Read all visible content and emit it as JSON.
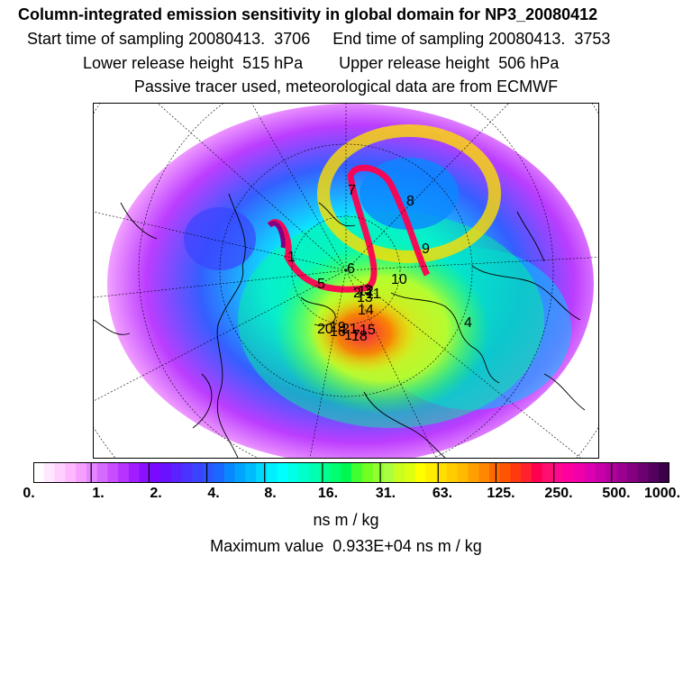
{
  "header": {
    "title": "Column-integrated emission sensitivity in global domain for NP3_20080412",
    "sampling_line": "Start time of sampling 20080413.  3706     End time of sampling 20080413.  3753",
    "height_line": "Lower release height  515 hPa        Upper release height  506 hPa",
    "tracer_line": "Passive tracer used, meteorological data are from ECMWF"
  },
  "map": {
    "projection": "north-polar-stereographic",
    "labels": [
      "1",
      "2",
      "3",
      "4",
      "5",
      "6",
      "7",
      "8",
      "9",
      "10",
      "11",
      "12",
      "13",
      "14",
      "15",
      "16",
      "17",
      "18",
      "19",
      "20",
      "21"
    ]
  },
  "colorbar": {
    "tick_labels": [
      "0.",
      "1.",
      "2.",
      "4.",
      "8.",
      "16.",
      "31.",
      "63.",
      "125.",
      "250.",
      "500.",
      "1000."
    ],
    "units": "ns m / kg",
    "colors": [
      "#ffffff",
      "#ffe8ff",
      "#ffd0ff",
      "#ffb8ff",
      "#f4a0ff",
      "#e585ff",
      "#d56aff",
      "#c84dff",
      "#b833ff",
      "#9f1dff",
      "#8a10ff",
      "#7a0aff",
      "#6a12ff",
      "#5a22ff",
      "#4a32ff",
      "#3a44ff",
      "#2a56ff",
      "#1a68ff",
      "#0a88ff",
      "#00a4ff",
      "#00bcff",
      "#00d8ff",
      "#00f0ff",
      "#00ffff",
      "#00ffe8",
      "#00ffcc",
      "#00ffb0",
      "#00ff90",
      "#00ff70",
      "#00f850",
      "#40ff30",
      "#70ff20",
      "#90ff30",
      "#aaff40",
      "#c8ff20",
      "#ddff10",
      "#ffff00",
      "#ffee00",
      "#ffdd00",
      "#ffcc00",
      "#ffbb00",
      "#ffa000",
      "#ff8800",
      "#ff6a00",
      "#ff5500",
      "#ff3a10",
      "#ff2030",
      "#ff0050",
      "#ff1070",
      "#ff0890",
      "#ff00a0",
      "#f000a8",
      "#dd00b0",
      "#c800a8",
      "#b4009e",
      "#9c0090",
      "#840080",
      "#6c0070",
      "#540060",
      "#3c0048"
    ]
  },
  "maximum_line": "Maximum value  0.933E+04 ns m / kg"
}
